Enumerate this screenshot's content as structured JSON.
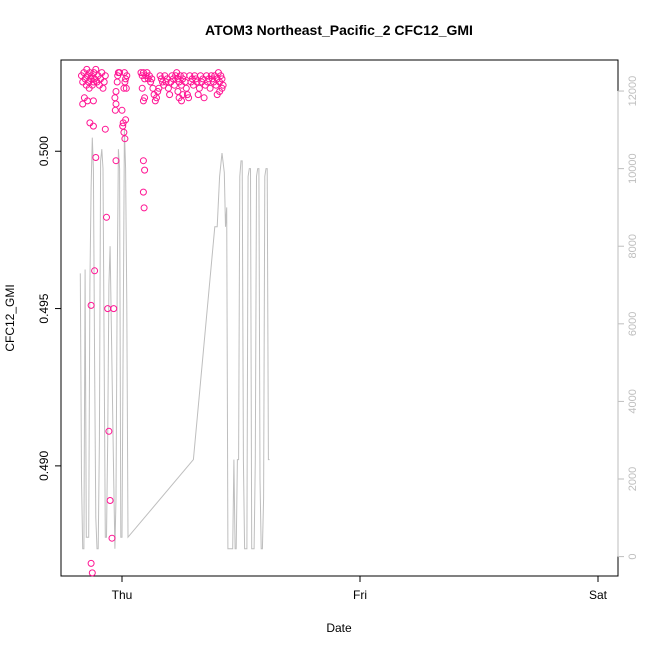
{
  "chart_data": {
    "type": "scatter",
    "title": "ATOM3 Northeast_Pacific_2 CFC12_GMI",
    "xlabel": "Date",
    "ylabel": "CFC12_GMI",
    "x_ticks": [
      {
        "label": "Thu",
        "value": 0
      },
      {
        "label": "Fri",
        "value": 1
      },
      {
        "label": "Sat",
        "value": 2
      }
    ],
    "x_range": [
      -0.2,
      2.1
    ],
    "ylim_left": [
      0.4865,
      0.5029
    ],
    "y_ticks_left": [
      "0.490",
      "0.495",
      "0.500"
    ],
    "ylim_right": [
      -500,
      12800
    ],
    "y_ticks_right": [
      "0",
      "2000",
      "4000",
      "6000",
      "8000",
      "10000",
      "12000"
    ],
    "right_axis_color": "#bebebe",
    "grid": false,
    "colors": {
      "points": "#ff1493",
      "line": "#bebebe",
      "axis": "#000000"
    },
    "series": [
      {
        "marker": "circle-open",
        "axis": "left",
        "points": [
          [
            -0.17,
            0.5024
          ],
          [
            -0.165,
            0.5022
          ],
          [
            -0.16,
            0.5025
          ],
          [
            -0.155,
            0.5023
          ],
          [
            -0.15,
            0.5021
          ],
          [
            -0.148,
            0.5026
          ],
          [
            -0.145,
            0.5024
          ],
          [
            -0.14,
            0.5022
          ],
          [
            -0.138,
            0.502
          ],
          [
            -0.135,
            0.5025
          ],
          [
            -0.13,
            0.5023
          ],
          [
            -0.128,
            0.5024
          ],
          [
            -0.125,
            0.5021
          ],
          [
            -0.12,
            0.5022
          ],
          [
            -0.118,
            0.5025
          ],
          [
            -0.115,
            0.5023
          ],
          [
            -0.11,
            0.5026
          ],
          [
            -0.105,
            0.5022
          ],
          [
            -0.1,
            0.5024
          ],
          [
            -0.095,
            0.5021
          ],
          [
            -0.09,
            0.5023
          ],
          [
            -0.085,
            0.5025
          ],
          [
            -0.08,
            0.502
          ],
          [
            -0.075,
            0.5022
          ],
          [
            -0.07,
            0.5024
          ],
          [
            -0.165,
            0.5015
          ],
          [
            -0.158,
            0.5017
          ],
          [
            -0.145,
            0.5016
          ],
          [
            -0.12,
            0.5016
          ],
          [
            -0.03,
            0.5017
          ],
          [
            -0.025,
            0.5015
          ],
          [
            -0.028,
            0.5013
          ],
          [
            -0.02,
            0.5022
          ],
          [
            -0.015,
            0.5025
          ],
          [
            -0.018,
            0.5024
          ],
          [
            -0.025,
            0.5019
          ],
          [
            -0.01,
            0.5025
          ],
          [
            -0.135,
            0.5009
          ],
          [
            -0.12,
            0.5008
          ],
          [
            -0.11,
            0.4998
          ],
          [
            -0.07,
            0.5007
          ],
          [
            -0.025,
            0.4997
          ],
          [
            -0.065,
            0.4979
          ],
          [
            -0.115,
            0.4962
          ],
          [
            -0.13,
            0.4951
          ],
          [
            -0.06,
            0.495
          ],
          [
            -0.035,
            0.495
          ],
          [
            -0.055,
            0.4911
          ],
          [
            -0.05,
            0.4889
          ],
          [
            -0.042,
            0.4877
          ],
          [
            -0.13,
            0.4869
          ],
          [
            -0.125,
            0.4866
          ],
          [
            0.01,
            0.5025
          ],
          [
            0.015,
            0.5023
          ],
          [
            0.02,
            0.5024
          ],
          [
            0.012,
            0.5022
          ],
          [
            0.008,
            0.502
          ],
          [
            0.018,
            0.502
          ],
          [
            0.0,
            0.5013
          ],
          [
            0.005,
            0.5009
          ],
          [
            0.003,
            0.5008
          ],
          [
            0.015,
            0.501
          ],
          [
            0.008,
            0.5006
          ],
          [
            0.012,
            0.5004
          ],
          [
            0.08,
            0.5025
          ],
          [
            0.085,
            0.5024
          ],
          [
            0.09,
            0.5025
          ],
          [
            0.095,
            0.5023
          ],
          [
            0.1,
            0.5024
          ],
          [
            0.105,
            0.5025
          ],
          [
            0.11,
            0.5023
          ],
          [
            0.115,
            0.5024
          ],
          [
            0.12,
            0.5022
          ],
          [
            0.125,
            0.5023
          ],
          [
            0.13,
            0.502
          ],
          [
            0.135,
            0.5018
          ],
          [
            0.14,
            0.5016
          ],
          [
            0.145,
            0.5017
          ],
          [
            0.15,
            0.5019
          ],
          [
            0.155,
            0.502
          ],
          [
            0.16,
            0.5024
          ],
          [
            0.165,
            0.5023
          ],
          [
            0.17,
            0.5022
          ],
          [
            0.175,
            0.5021
          ],
          [
            0.18,
            0.5024
          ],
          [
            0.185,
            0.5022
          ],
          [
            0.19,
            0.5023
          ],
          [
            0.195,
            0.502
          ],
          [
            0.2,
            0.5018
          ],
          [
            0.205,
            0.5022
          ],
          [
            0.21,
            0.5024
          ],
          [
            0.215,
            0.5023
          ],
          [
            0.22,
            0.5021
          ],
          [
            0.225,
            0.5024
          ],
          [
            0.23,
            0.5025
          ],
          [
            0.235,
            0.5023
          ],
          [
            0.24,
            0.5022
          ],
          [
            0.245,
            0.5024
          ],
          [
            0.25,
            0.5021
          ],
          [
            0.255,
            0.5023
          ],
          [
            0.26,
            0.5024
          ],
          [
            0.265,
            0.5022
          ],
          [
            0.27,
            0.502
          ],
          [
            0.275,
            0.5018
          ],
          [
            0.28,
            0.5017
          ],
          [
            0.285,
            0.5024
          ],
          [
            0.29,
            0.5022
          ],
          [
            0.295,
            0.5023
          ],
          [
            0.3,
            0.5021
          ],
          [
            0.305,
            0.5024
          ],
          [
            0.31,
            0.5023
          ],
          [
            0.315,
            0.5022
          ],
          [
            0.32,
            0.5018
          ],
          [
            0.325,
            0.502
          ],
          [
            0.33,
            0.5024
          ],
          [
            0.335,
            0.5022
          ],
          [
            0.34,
            0.5023
          ],
          [
            0.345,
            0.5017
          ],
          [
            0.35,
            0.5021
          ],
          [
            0.355,
            0.5024
          ],
          [
            0.36,
            0.5022
          ],
          [
            0.365,
            0.5023
          ],
          [
            0.37,
            0.502
          ],
          [
            0.375,
            0.5024
          ],
          [
            0.38,
            0.5023
          ],
          [
            0.385,
            0.5022
          ],
          [
            0.39,
            0.5024
          ],
          [
            0.395,
            0.5021
          ],
          [
            0.4,
            0.5023
          ],
          [
            0.405,
            0.5025
          ],
          [
            0.41,
            0.5022
          ],
          [
            0.415,
            0.5024
          ],
          [
            0.42,
            0.5023
          ],
          [
            0.425,
            0.5021
          ],
          [
            0.085,
            0.502
          ],
          [
            0.09,
            0.5016
          ],
          [
            0.095,
            0.5017
          ],
          [
            0.25,
            0.5016
          ],
          [
            0.255,
            0.5018
          ],
          [
            0.24,
            0.5017
          ],
          [
            0.235,
            0.5019
          ],
          [
            0.4,
            0.5018
          ],
          [
            0.41,
            0.5019
          ],
          [
            0.42,
            0.502
          ],
          [
            0.09,
            0.4997
          ],
          [
            0.095,
            0.4994
          ],
          [
            0.09,
            0.4987
          ],
          [
            0.093,
            0.4982
          ]
        ]
      },
      {
        "marker": "line",
        "axis": "right",
        "points": [
          [
            -0.175,
            7300
          ],
          [
            -0.17,
            2000
          ],
          [
            -0.165,
            200
          ],
          [
            -0.16,
            200
          ],
          [
            -0.155,
            7400
          ],
          [
            -0.15,
            500
          ],
          [
            -0.14,
            500
          ],
          [
            -0.135,
            7000
          ],
          [
            -0.13,
            9500
          ],
          [
            -0.125,
            10800
          ],
          [
            -0.12,
            10000
          ],
          [
            -0.115,
            5000
          ],
          [
            -0.11,
            1000
          ],
          [
            -0.105,
            200
          ],
          [
            -0.1,
            200
          ],
          [
            -0.095,
            3000
          ],
          [
            -0.09,
            10200
          ],
          [
            -0.085,
            10500
          ],
          [
            -0.08,
            10000
          ],
          [
            -0.075,
            5000
          ],
          [
            -0.07,
            500
          ],
          [
            -0.065,
            500
          ],
          [
            -0.06,
            3000
          ],
          [
            -0.055,
            7000
          ],
          [
            -0.05,
            8000
          ],
          [
            -0.045,
            6000
          ],
          [
            -0.035,
            2000
          ],
          [
            -0.03,
            200
          ],
          [
            -0.025,
            1500
          ],
          [
            -0.02,
            7000
          ],
          [
            -0.015,
            10500
          ],
          [
            -0.01,
            10000
          ],
          [
            -0.005,
            500
          ],
          [
            0.0,
            500
          ],
          [
            0.01,
            11000
          ],
          [
            0.015,
            10000
          ],
          [
            0.02,
            6500
          ],
          [
            0.025,
            500
          ],
          [
            0.3,
            2500
          ],
          [
            0.39,
            8500
          ],
          [
            0.4,
            8500
          ],
          [
            0.41,
            9800
          ],
          [
            0.42,
            10400
          ],
          [
            0.43,
            9900
          ],
          [
            0.435,
            8500
          ],
          [
            0.44,
            9000
          ],
          [
            0.445,
            200
          ],
          [
            0.45,
            200
          ],
          [
            0.455,
            200
          ],
          [
            0.46,
            200
          ],
          [
            0.465,
            200
          ],
          [
            0.47,
            2500
          ],
          [
            0.475,
            200
          ],
          [
            0.48,
            200
          ],
          [
            0.485,
            2500
          ],
          [
            0.49,
            2500
          ],
          [
            0.495,
            9800
          ],
          [
            0.5,
            10200
          ],
          [
            0.505,
            10200
          ],
          [
            0.51,
            2500
          ],
          [
            0.515,
            200
          ],
          [
            0.52,
            200
          ],
          [
            0.525,
            200
          ],
          [
            0.53,
            9800
          ],
          [
            0.535,
            10000
          ],
          [
            0.54,
            10000
          ],
          [
            0.545,
            200
          ],
          [
            0.55,
            200
          ],
          [
            0.555,
            200
          ],
          [
            0.56,
            2500
          ],
          [
            0.565,
            9800
          ],
          [
            0.57,
            10000
          ],
          [
            0.575,
            10000
          ],
          [
            0.58,
            2000
          ],
          [
            0.585,
            200
          ],
          [
            0.59,
            200
          ],
          [
            0.595,
            1500
          ],
          [
            0.6,
            9800
          ],
          [
            0.605,
            10000
          ],
          [
            0.61,
            10000
          ],
          [
            0.615,
            2500
          ],
          [
            0.62,
            2500
          ]
        ]
      }
    ]
  }
}
